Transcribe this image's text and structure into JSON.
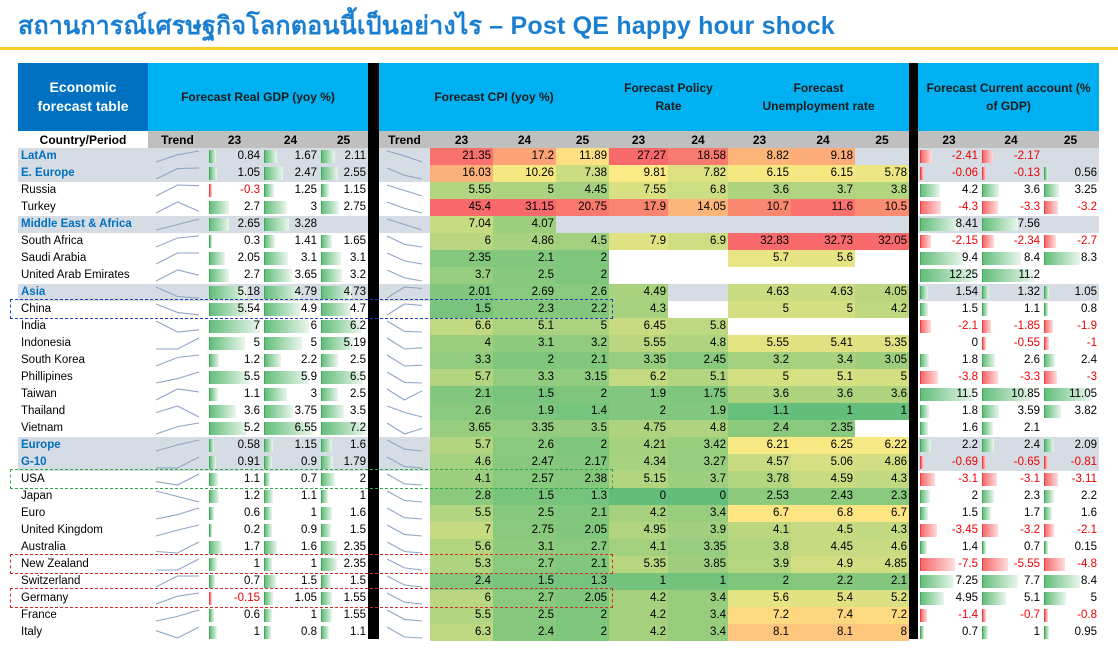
{
  "title": "สถานการณ์เศรษฐกิจโลกตอนนี้เป็นอย่างไร – Post QE happy hour shock",
  "headers": {
    "first": "Economic forecast table",
    "gdp": "Forecast  Real GDP (yoy %)",
    "cpi": "Forecast  CPI (yoy %)",
    "policy": "Forecast  Policy Rate",
    "unemp": "Forecast  Unemployment rate",
    "ca": "Forecast  Current account (% of GDP)"
  },
  "subheaders": {
    "country": "Country/Period",
    "trend": "Trend",
    "y23": "23",
    "y24": "24",
    "y25": "25"
  },
  "colors": {
    "title": "#1a7fd1",
    "header_blue": "#00b0f0",
    "header_dark": "#0070c0",
    "group_row": "#d6dce4",
    "bar_green": "#63be7b",
    "bar_red": "#f8696b"
  },
  "highlights": [
    {
      "row": "China",
      "color": "#1f3fbf"
    },
    {
      "row": "USA",
      "color": "#2ea84a"
    },
    {
      "row": "New Zealand",
      "color": "#d42a2a"
    },
    {
      "row": "Germany",
      "color": "#d42a2a"
    }
  ],
  "rows": [
    {
      "name": "LatAm",
      "group": true,
      "gdp": [
        "0.84",
        "1.67",
        "2.11"
      ],
      "cpi": [
        "21.35",
        "17.2",
        "11.89"
      ],
      "policy": [
        "27.27",
        "18.58"
      ],
      "unemp": [
        "8.82",
        "9.18",
        ""
      ],
      "ca": [
        "-2.41",
        "-2.17",
        ""
      ]
    },
    {
      "name": "E. Europe",
      "group": true,
      "gdp": [
        "1.05",
        "2.47",
        "2.55"
      ],
      "cpi": [
        "16.03",
        "10.26",
        "7.38"
      ],
      "policy": [
        "9.81",
        "7.82"
      ],
      "unemp": [
        "6.15",
        "6.15",
        "5.78"
      ],
      "ca": [
        "-0.06",
        "-0.13",
        "0.56"
      ]
    },
    {
      "name": "Russia",
      "group": false,
      "gdp": [
        "-0.3",
        "1.25",
        "1.15"
      ],
      "cpi": [
        "5.55",
        "5",
        "4.45"
      ],
      "policy": [
        "7.55",
        "6.8"
      ],
      "unemp": [
        "3.6",
        "3.7",
        "3.8"
      ],
      "ca": [
        "4.2",
        "3.6",
        "3.25"
      ]
    },
    {
      "name": "Turkey",
      "group": false,
      "gdp": [
        "2.7",
        "3",
        "2.75"
      ],
      "cpi": [
        "45.4",
        "31.15",
        "20.75"
      ],
      "policy": [
        "17.9",
        "14.05"
      ],
      "unemp": [
        "10.7",
        "11.6",
        "10.5"
      ],
      "ca": [
        "-4.3",
        "-3.3",
        "-3.2"
      ]
    },
    {
      "name": "Middle East & Africa",
      "group": true,
      "gdp": [
        "2.65",
        "3.28",
        ""
      ],
      "cpi": [
        "7.04",
        "4.07",
        ""
      ],
      "policy": [
        "",
        ""
      ],
      "unemp": [
        "",
        "",
        ""
      ],
      "ca": [
        "8.41",
        "7.56",
        ""
      ]
    },
    {
      "name": "South Africa",
      "group": false,
      "gdp": [
        "0.3",
        "1.41",
        "1.65"
      ],
      "cpi": [
        "6",
        "4.86",
        "4.5"
      ],
      "policy": [
        "7.9",
        "6.9"
      ],
      "unemp": [
        "32.83",
        "32.73",
        "32.05"
      ],
      "ca": [
        "-2.15",
        "-2.34",
        "-2.7"
      ]
    },
    {
      "name": "Saudi Arabia",
      "group": false,
      "gdp": [
        "2.05",
        "3.1",
        "3.1"
      ],
      "cpi": [
        "2.35",
        "2.1",
        "2"
      ],
      "policy": [
        "",
        ""
      ],
      "unemp": [
        "5.7",
        "5.6",
        ""
      ],
      "ca": [
        "9.4",
        "8.4",
        "8.3"
      ]
    },
    {
      "name": "United Arab Emirates",
      "group": false,
      "gdp": [
        "2.7",
        "3.65",
        "3.2"
      ],
      "cpi": [
        "3.7",
        "2.5",
        "2"
      ],
      "policy": [
        "",
        ""
      ],
      "unemp": [
        "",
        "",
        ""
      ],
      "ca": [
        "12.25",
        "11.2",
        ""
      ]
    },
    {
      "name": "Asia",
      "group": true,
      "gdp": [
        "5.18",
        "4.79",
        "4.73"
      ],
      "cpi": [
        "2.01",
        "2.69",
        "2.6"
      ],
      "policy": [
        "4.49",
        ""
      ],
      "unemp": [
        "4.63",
        "4.63",
        "4.05"
      ],
      "ca": [
        "1.54",
        "1.32",
        "1.05"
      ]
    },
    {
      "name": "China",
      "group": false,
      "gdp": [
        "5.54",
        "4.9",
        "4.7"
      ],
      "cpi": [
        "1.5",
        "2.3",
        "2.2"
      ],
      "policy": [
        "4.3",
        ""
      ],
      "unemp": [
        "5",
        "5",
        "4.2"
      ],
      "ca": [
        "1.5",
        "1.1",
        "0.8"
      ]
    },
    {
      "name": "India",
      "group": false,
      "gdp": [
        "7",
        "6",
        "6.2"
      ],
      "cpi": [
        "6.6",
        "5.1",
        "5"
      ],
      "policy": [
        "6.45",
        "5.8"
      ],
      "unemp": [
        "",
        "",
        ""
      ],
      "ca": [
        "-2.1",
        "-1.85",
        "-1.9"
      ]
    },
    {
      "name": "Indonesia",
      "group": false,
      "gdp": [
        "5",
        "5",
        "5.19"
      ],
      "cpi": [
        "4",
        "3.1",
        "3.2"
      ],
      "policy": [
        "5.55",
        "4.8"
      ],
      "unemp": [
        "5.55",
        "5.41",
        "5.35"
      ],
      "ca": [
        "0",
        "-0.55",
        "-1"
      ]
    },
    {
      "name": "South Korea",
      "group": false,
      "gdp": [
        "1.2",
        "2.2",
        "2.5"
      ],
      "cpi": [
        "3.3",
        "2",
        "2.1"
      ],
      "policy": [
        "3.35",
        "2.45"
      ],
      "unemp": [
        "3.2",
        "3.4",
        "3.05"
      ],
      "ca": [
        "1.8",
        "2.6",
        "2.4"
      ]
    },
    {
      "name": "Phillipines",
      "group": false,
      "gdp": [
        "5.5",
        "5.9",
        "6.5"
      ],
      "cpi": [
        "5.7",
        "3.3",
        "3.15"
      ],
      "policy": [
        "6.2",
        "5.1"
      ],
      "unemp": [
        "5",
        "5.1",
        "5"
      ],
      "ca": [
        "-3.8",
        "-3.3",
        "-3"
      ]
    },
    {
      "name": "Taiwan",
      "group": false,
      "gdp": [
        "1.1",
        "3",
        "2.5"
      ],
      "cpi": [
        "2.1",
        "1.5",
        "2"
      ],
      "policy": [
        "1.9",
        "1.75"
      ],
      "unemp": [
        "3.6",
        "3.6",
        "3.6"
      ],
      "ca": [
        "11.5",
        "10.85",
        "11.05"
      ]
    },
    {
      "name": "Thailand",
      "group": false,
      "gdp": [
        "3.6",
        "3.75",
        "3.5"
      ],
      "cpi": [
        "2.6",
        "1.9",
        "1.4"
      ],
      "policy": [
        "2",
        "1.9"
      ],
      "unemp": [
        "1.1",
        "1",
        "1"
      ],
      "ca": [
        "1.8",
        "3.59",
        "3.82"
      ]
    },
    {
      "name": "Vietnam",
      "group": false,
      "gdp": [
        "5.2",
        "6.55",
        "7.2"
      ],
      "cpi": [
        "3.65",
        "3.35",
        "3.5"
      ],
      "policy": [
        "4.75",
        "4.8"
      ],
      "unemp": [
        "2.4",
        "2.35",
        ""
      ],
      "ca": [
        "1.6",
        "2.1",
        ""
      ]
    },
    {
      "name": "Europe",
      "group": true,
      "gdp": [
        "0.58",
        "1.15",
        "1.6"
      ],
      "cpi": [
        "5.7",
        "2.6",
        "2"
      ],
      "policy": [
        "4.21",
        "3.42"
      ],
      "unemp": [
        "6.21",
        "6.25",
        "6.22"
      ],
      "ca": [
        "2.2",
        "2.4",
        "2.09"
      ]
    },
    {
      "name": "G-10",
      "group": true,
      "gdp": [
        "0.91",
        "0.9",
        "1.79"
      ],
      "cpi": [
        "4.6",
        "2.47",
        "2.17"
      ],
      "policy": [
        "4.34",
        "3.27"
      ],
      "unemp": [
        "4.57",
        "5.06",
        "4.86"
      ],
      "ca": [
        "-0.69",
        "-0.65",
        "-0.81"
      ]
    },
    {
      "name": "USA",
      "group": false,
      "gdp": [
        "1.1",
        "0.7",
        "2"
      ],
      "cpi": [
        "4.1",
        "2.57",
        "2.38"
      ],
      "policy": [
        "5.15",
        "3.7"
      ],
      "unemp": [
        "3.78",
        "4.59",
        "4.3"
      ],
      "ca": [
        "-3.1",
        "-3.1",
        "-3.11"
      ]
    },
    {
      "name": "Japan",
      "group": false,
      "gdp": [
        "1.2",
        "1.1",
        "1"
      ],
      "cpi": [
        "2.8",
        "1.5",
        "1.3"
      ],
      "policy": [
        "0",
        "0"
      ],
      "unemp": [
        "2.53",
        "2.43",
        "2.3"
      ],
      "ca": [
        "2",
        "2.3",
        "2.2"
      ]
    },
    {
      "name": "Euro",
      "group": false,
      "gdp": [
        "0.6",
        "1",
        "1.6"
      ],
      "cpi": [
        "5.5",
        "2.5",
        "2.1"
      ],
      "policy": [
        "4.2",
        "3.4"
      ],
      "unemp": [
        "6.7",
        "6.8",
        "6.7"
      ],
      "ca": [
        "1.5",
        "1.7",
        "1.6"
      ]
    },
    {
      "name": "United  Kingdom",
      "group": false,
      "gdp": [
        "0.2",
        "0.9",
        "1.5"
      ],
      "cpi": [
        "7",
        "2.75",
        "2.05"
      ],
      "policy": [
        "4.95",
        "3.9"
      ],
      "unemp": [
        "4.1",
        "4.5",
        "4.3"
      ],
      "ca": [
        "-3.45",
        "-3.2",
        "-2.1"
      ]
    },
    {
      "name": "Australia",
      "group": false,
      "gdp": [
        "1.7",
        "1.6",
        "2.35"
      ],
      "cpi": [
        "5.6",
        "3.1",
        "2.7"
      ],
      "policy": [
        "4.1",
        "3.35"
      ],
      "unemp": [
        "3.8",
        "4.45",
        "4.6"
      ],
      "ca": [
        "1.4",
        "0.7",
        "0.15"
      ]
    },
    {
      "name": "New Zealand",
      "group": false,
      "gdp": [
        "1",
        "1",
        "2.35"
      ],
      "cpi": [
        "5.3",
        "2.7",
        "2.1"
      ],
      "policy": [
        "5.35",
        "3.85"
      ],
      "unemp": [
        "3.9",
        "4.9",
        "4.85"
      ],
      "ca": [
        "-7.5",
        "-5.55",
        "-4.8"
      ]
    },
    {
      "name": "Switzerland",
      "group": false,
      "gdp": [
        "0.7",
        "1.5",
        "1.5"
      ],
      "cpi": [
        "2.4",
        "1.5",
        "1.3"
      ],
      "policy": [
        "1",
        "1"
      ],
      "unemp": [
        "2",
        "2.2",
        "2.1"
      ],
      "ca": [
        "7.25",
        "7.7",
        "8.4"
      ]
    },
    {
      "name": "Germany",
      "group": false,
      "gdp": [
        "-0.15",
        "1.05",
        "1.55"
      ],
      "cpi": [
        "6",
        "2.7",
        "2.05"
      ],
      "policy": [
        "4.2",
        "3.4"
      ],
      "unemp": [
        "5.6",
        "5.4",
        "5.2"
      ],
      "ca": [
        "4.95",
        "5.1",
        "5"
      ]
    },
    {
      "name": "France",
      "group": false,
      "gdp": [
        "0.6",
        "1",
        "1.55"
      ],
      "cpi": [
        "5.5",
        "2.5",
        "2"
      ],
      "policy": [
        "4.2",
        "3.4"
      ],
      "unemp": [
        "7.2",
        "7.4",
        "7.2"
      ],
      "ca": [
        "-1.4",
        "-0.7",
        "-0.8"
      ]
    },
    {
      "name": "Italy",
      "group": false,
      "gdp": [
        "1",
        "0.8",
        "1.1"
      ],
      "cpi": [
        "6.3",
        "2.4",
        "2"
      ],
      "policy": [
        "4.2",
        "3.4"
      ],
      "unemp": [
        "8.1",
        "8.1",
        "8"
      ],
      "ca": [
        "0.7",
        "1",
        "0.95"
      ]
    }
  ]
}
